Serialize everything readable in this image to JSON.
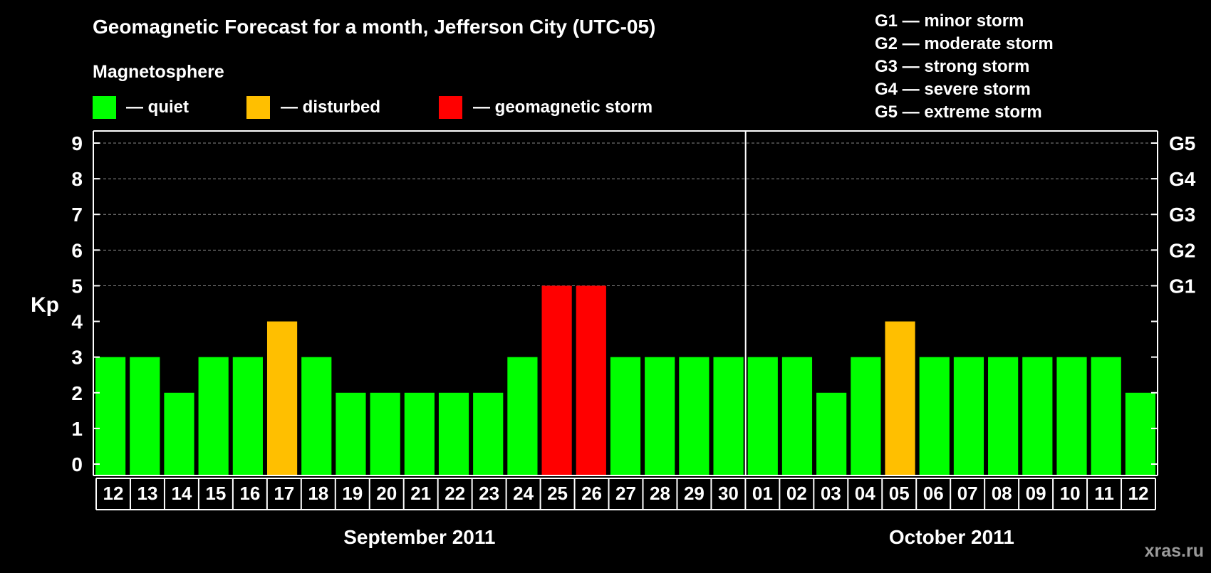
{
  "chart_data": {
    "type": "bar",
    "title": "Geomagnetic Forecast for a month, Jefferson City (UTC-05)",
    "subtitle": "Magnetosphere",
    "ylabel": "Kp",
    "ylim": [
      0,
      9
    ],
    "yticks": [
      "0",
      "1",
      "2",
      "3",
      "4",
      "5",
      "6",
      "7",
      "8",
      "9"
    ],
    "right_axis": [
      {
        "value": 5,
        "label": "G1"
      },
      {
        "value": 6,
        "label": "G2"
      },
      {
        "value": 7,
        "label": "G3"
      },
      {
        "value": 8,
        "label": "G4"
      },
      {
        "value": 9,
        "label": "G5"
      }
    ],
    "legend": [
      {
        "key": "quiet",
        "label": "— quiet",
        "color": "#00ff00"
      },
      {
        "key": "disturbed",
        "label": "— disturbed",
        "color": "#ffbf00"
      },
      {
        "key": "storm",
        "label": "— geomagnetic storm",
        "color": "#ff0000"
      }
    ],
    "scale_legend": [
      "G1 — minor storm",
      "G2 — moderate storm",
      "G3 — strong storm",
      "G4 — severe storm",
      "G5 — extreme storm"
    ],
    "categories": [
      "12",
      "13",
      "14",
      "15",
      "16",
      "17",
      "18",
      "19",
      "20",
      "21",
      "22",
      "23",
      "24",
      "25",
      "26",
      "27",
      "28",
      "29",
      "30",
      "01",
      "02",
      "03",
      "04",
      "05",
      "06",
      "07",
      "08",
      "09",
      "10",
      "11",
      "12"
    ],
    "values": [
      3,
      3,
      2,
      3,
      3,
      4,
      3,
      2,
      2,
      2,
      2,
      2,
      3,
      5,
      5,
      3,
      3,
      3,
      3,
      3,
      3,
      2,
      3,
      4,
      3,
      3,
      3,
      3,
      3,
      3,
      2
    ],
    "states": [
      "quiet",
      "quiet",
      "quiet",
      "quiet",
      "quiet",
      "disturbed",
      "quiet",
      "quiet",
      "quiet",
      "quiet",
      "quiet",
      "quiet",
      "quiet",
      "storm",
      "storm",
      "quiet",
      "quiet",
      "quiet",
      "quiet",
      "quiet",
      "quiet",
      "quiet",
      "quiet",
      "disturbed",
      "quiet",
      "quiet",
      "quiet",
      "quiet",
      "quiet",
      "quiet",
      "quiet"
    ],
    "months": [
      {
        "label": "September 2011",
        "count": 19
      },
      {
        "label": "October 2011",
        "count": 12
      }
    ],
    "grid": true,
    "watermark": "xras.ru"
  },
  "colors": {
    "background": "#000000",
    "text": "#ffffff",
    "grid": "#888888",
    "axis": "#ffffff"
  }
}
